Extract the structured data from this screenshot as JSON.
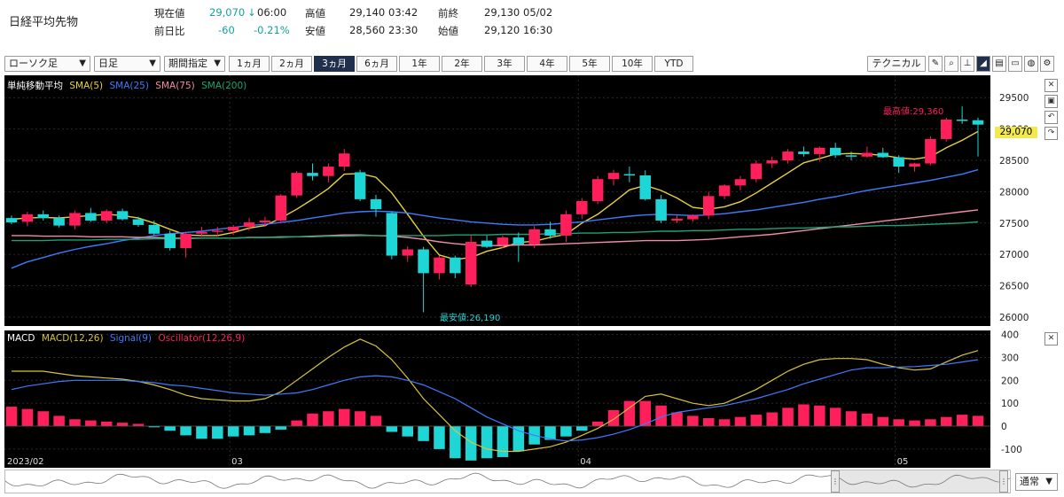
{
  "header": {
    "title": "日経平均先物",
    "current_label": "現在値",
    "current_value": "29,070",
    "current_arrow": "↓",
    "current_time": "06:00",
    "high_label": "高値",
    "high_value": "29,140",
    "high_time": "03:42",
    "prev_close_label": "前終",
    "prev_close_value": "29,130",
    "prev_close_date": "05/02",
    "change_label": "前日比",
    "change_value": "-60",
    "change_pct": "-0.21%",
    "low_label": "安値",
    "low_value": "28,560",
    "low_time": "23:30",
    "open_label": "始値",
    "open_value": "29,120",
    "open_time": "16:30"
  },
  "toolbar": {
    "chart_type": "ローソク足",
    "interval": "日足",
    "range_mode": "期間指定",
    "periods": [
      "1ヵ月",
      "2ヵ月",
      "3ヵ月",
      "6ヵ月",
      "1年",
      "2年",
      "3年",
      "4年",
      "5年",
      "10年",
      "YTD"
    ],
    "active_period": "3ヵ月",
    "technical_label": "テクニカル",
    "icons": [
      "pencil-icon",
      "zoom-icon",
      "bar-chart-icon",
      "line-chart-icon",
      "document-icon",
      "folder-icon",
      "globe-icon",
      "gear-icon"
    ],
    "display_mode": "通常"
  },
  "colors": {
    "background": "#000000",
    "up": "#ff1f5a",
    "down": "#1fd6d6",
    "sma5": "#e8d23c",
    "sma25": "#3e7bff",
    "sma75": "#f28ca8",
    "sma200": "#1aa37a",
    "macd": "#d8c43a",
    "signal": "#3e7bff",
    "osc_pos": "#ff1f5a",
    "osc_neg": "#1fd6d6"
  },
  "chart_data": [
    {
      "type": "candlestick",
      "legend": {
        "title": "単純移動平均",
        "items": [
          "SMA(5)",
          "SMA(25)",
          "SMA(75)",
          "SMA(200)"
        ]
      },
      "ylim": [
        25900,
        29800
      ],
      "yticks": [
        26000,
        26500,
        27000,
        27500,
        28000,
        28500,
        29000,
        29500
      ],
      "current_price": "29,070",
      "annotations": {
        "high": "最高値:29,360",
        "low": "最安値:26,190"
      },
      "xlabels": [
        {
          "i": 0,
          "label": "2023/02"
        },
        {
          "i": 14,
          "label": "03"
        },
        {
          "i": 36,
          "label": "04"
        },
        {
          "i": 56,
          "label": "05"
        }
      ],
      "candles": [
        [
          27580,
          27620,
          27480,
          27510
        ],
        [
          27520,
          27680,
          27450,
          27640
        ],
        [
          27640,
          27700,
          27540,
          27580
        ],
        [
          27580,
          27620,
          27430,
          27460
        ],
        [
          27460,
          27700,
          27400,
          27660
        ],
        [
          27660,
          27740,
          27520,
          27540
        ],
        [
          27540,
          27720,
          27500,
          27690
        ],
        [
          27690,
          27730,
          27540,
          27560
        ],
        [
          27560,
          27600,
          27440,
          27470
        ],
        [
          27470,
          27540,
          27300,
          27330
        ],
        [
          27330,
          27380,
          27060,
          27100
        ],
        [
          27100,
          27360,
          26950,
          27330
        ],
        [
          27330,
          27440,
          27280,
          27360
        ],
        [
          27360,
          27440,
          27300,
          27380
        ],
        [
          27380,
          27470,
          27310,
          27440
        ],
        [
          27440,
          27580,
          27380,
          27510
        ],
        [
          27510,
          27600,
          27440,
          27540
        ],
        [
          27540,
          27960,
          27500,
          27940
        ],
        [
          27940,
          28330,
          27900,
          28300
        ],
        [
          28300,
          28450,
          28180,
          28250
        ],
        [
          28250,
          28450,
          28150,
          28400
        ],
        [
          28400,
          28680,
          28330,
          28610
        ],
        [
          28310,
          28350,
          27850,
          27880
        ],
        [
          27880,
          27950,
          27600,
          27720
        ],
        [
          27660,
          27680,
          26920,
          26980
        ],
        [
          26980,
          27130,
          26880,
          27080
        ],
        [
          27080,
          27120,
          26190,
          26700
        ],
        [
          26700,
          26980,
          26600,
          26950
        ],
        [
          26950,
          26980,
          26620,
          26700
        ],
        [
          26520,
          27300,
          26480,
          27200
        ],
        [
          27220,
          27300,
          27100,
          27120
        ],
        [
          27150,
          27300,
          27100,
          27270
        ],
        [
          27270,
          27350,
          26880,
          27160
        ],
        [
          27160,
          27450,
          27100,
          27400
        ],
        [
          27400,
          27520,
          27250,
          27300
        ],
        [
          27300,
          27700,
          27200,
          27640
        ],
        [
          27640,
          27900,
          27560,
          27850
        ],
        [
          27850,
          28250,
          27800,
          28200
        ],
        [
          28200,
          28350,
          28100,
          28300
        ],
        [
          28280,
          28400,
          28150,
          28260
        ],
        [
          28260,
          28340,
          27860,
          27880
        ],
        [
          27880,
          27950,
          27500,
          27540
        ],
        [
          27540,
          27620,
          27500,
          27570
        ],
        [
          27560,
          27640,
          27520,
          27620
        ],
        [
          27620,
          28000,
          27560,
          27930
        ],
        [
          27930,
          28120,
          27880,
          28100
        ],
        [
          28100,
          28250,
          28020,
          28200
        ],
        [
          28200,
          28500,
          28150,
          28450
        ],
        [
          28450,
          28560,
          28380,
          28500
        ],
        [
          28500,
          28680,
          28450,
          28640
        ],
        [
          28640,
          28720,
          28560,
          28600
        ],
        [
          28600,
          28720,
          28480,
          28700
        ],
        [
          28700,
          28780,
          28540,
          28580
        ],
        [
          28580,
          28640,
          28500,
          28560
        ],
        [
          28560,
          28720,
          28540,
          28620
        ],
        [
          28620,
          28700,
          28540,
          28550
        ],
        [
          28550,
          28580,
          28300,
          28400
        ],
        [
          28400,
          28460,
          28320,
          28450
        ],
        [
          28450,
          28880,
          28420,
          28840
        ],
        [
          28840,
          29180,
          28800,
          29150
        ],
        [
          29150,
          29360,
          29080,
          29140
        ],
        [
          29140,
          29180,
          28560,
          29070
        ]
      ],
      "series": [
        {
          "name": "SMA(5)",
          "values": [
            27560,
            27580,
            27590,
            27580,
            27600,
            27620,
            27640,
            27620,
            27580,
            27500,
            27400,
            27310,
            27300,
            27300,
            27350,
            27420,
            27460,
            27580,
            27720,
            27880,
            28050,
            28280,
            28290,
            28230,
            27980,
            27640,
            27290,
            26990,
            26920,
            26950,
            27050,
            27110,
            27190,
            27210,
            27270,
            27320,
            27500,
            27640,
            27830,
            28030,
            28100,
            28020,
            27900,
            27750,
            27720,
            27760,
            27840,
            27980,
            28140,
            28300,
            28460,
            28530,
            28600,
            28610,
            28600,
            28580,
            28540,
            28520,
            28560,
            28700,
            28820,
            28960
          ]
        },
        {
          "name": "SMA(25)",
          "values": [
            26780,
            26880,
            26950,
            27020,
            27080,
            27130,
            27170,
            27220,
            27260,
            27300,
            27330,
            27350,
            27370,
            27400,
            27430,
            27460,
            27480,
            27510,
            27540,
            27580,
            27620,
            27660,
            27680,
            27690,
            27680,
            27660,
            27620,
            27580,
            27550,
            27520,
            27500,
            27480,
            27470,
            27470,
            27480,
            27500,
            27520,
            27550,
            27580,
            27610,
            27630,
            27640,
            27630,
            27620,
            27630,
            27650,
            27680,
            27710,
            27750,
            27790,
            27830,
            27880,
            27920,
            27970,
            28020,
            28060,
            28100,
            28140,
            28180,
            28230,
            28280,
            28350
          ]
        },
        {
          "name": "SMA(75)",
          "values": [
            27300,
            27300,
            27290,
            27290,
            27290,
            27280,
            27280,
            27280,
            27270,
            27270,
            27260,
            27260,
            27260,
            27260,
            27260,
            27270,
            27270,
            27280,
            27280,
            27290,
            27300,
            27310,
            27310,
            27300,
            27290,
            27270,
            27240,
            27200,
            27170,
            27150,
            27140,
            27140,
            27150,
            27150,
            27160,
            27170,
            27180,
            27190,
            27200,
            27210,
            27220,
            27220,
            27220,
            27230,
            27240,
            27260,
            27280,
            27300,
            27320,
            27350,
            27380,
            27410,
            27440,
            27470,
            27500,
            27530,
            27560,
            27590,
            27620,
            27650,
            27680,
            27710
          ]
        },
        {
          "name": "SMA(200)",
          "values": [
            27220,
            27220,
            27220,
            27230,
            27230,
            27230,
            27240,
            27240,
            27240,
            27250,
            27250,
            27250,
            27260,
            27260,
            27260,
            27270,
            27270,
            27270,
            27280,
            27280,
            27290,
            27290,
            27300,
            27300,
            27300,
            27300,
            27300,
            27300,
            27310,
            27310,
            27310,
            27320,
            27320,
            27320,
            27330,
            27330,
            27340,
            27340,
            27350,
            27350,
            27360,
            27370,
            27370,
            27380,
            27380,
            27390,
            27400,
            27400,
            27410,
            27420,
            27420,
            27430,
            27440,
            27440,
            27450,
            27460,
            27460,
            27470,
            27480,
            27490,
            27500,
            27520
          ]
        }
      ]
    },
    {
      "type": "line",
      "legend": {
        "title": "MACD",
        "items": [
          "MACD(12,26)",
          "Signal(9)",
          "Oscillator(12,26,9)"
        ]
      },
      "ylim": [
        -170,
        410
      ],
      "yticks": [
        -100,
        0,
        100,
        200,
        300,
        400
      ],
      "series": [
        {
          "name": "MACD(12,26)",
          "values": [
            240,
            240,
            240,
            230,
            220,
            215,
            210,
            205,
            195,
            180,
            160,
            135,
            120,
            115,
            110,
            110,
            120,
            150,
            200,
            250,
            300,
            345,
            380,
            350,
            290,
            210,
            120,
            50,
            -20,
            -70,
            -100,
            -110,
            -110,
            -100,
            -90,
            -70,
            -40,
            -10,
            30,
            80,
            130,
            140,
            120,
            100,
            90,
            100,
            130,
            160,
            200,
            240,
            270,
            290,
            295,
            295,
            290,
            270,
            255,
            245,
            250,
            280,
            310,
            330
          ]
        },
        {
          "name": "Signal(9)",
          "values": [
            160,
            175,
            185,
            195,
            200,
            200,
            200,
            200,
            195,
            190,
            180,
            175,
            165,
            155,
            145,
            140,
            135,
            140,
            145,
            160,
            180,
            200,
            215,
            220,
            215,
            200,
            180,
            150,
            120,
            80,
            40,
            10,
            -20,
            -40,
            -55,
            -65,
            -60,
            -50,
            -35,
            -15,
            10,
            40,
            60,
            70,
            80,
            90,
            105,
            120,
            140,
            160,
            185,
            205,
            225,
            245,
            255,
            255,
            258,
            260,
            265,
            270,
            280,
            290
          ]
        },
        {
          "name": "Oscillator(12,26,9)",
          "values": [
            85,
            75,
            65,
            45,
            30,
            25,
            20,
            15,
            10,
            -5,
            -20,
            -40,
            -55,
            -55,
            -45,
            -40,
            -30,
            -15,
            25,
            55,
            65,
            75,
            65,
            45,
            -25,
            -45,
            -65,
            -100,
            -140,
            -150,
            -140,
            -135,
            -110,
            -80,
            -60,
            -45,
            -20,
            20,
            70,
            110,
            110,
            90,
            60,
            45,
            35,
            30,
            40,
            50,
            60,
            80,
            95,
            90,
            80,
            65,
            55,
            40,
            30,
            25,
            30,
            40,
            50,
            45
          ]
        }
      ],
      "xlabels": [
        {
          "i": 0,
          "label": "2023/02"
        },
        {
          "i": 14,
          "label": "03"
        },
        {
          "i": 36,
          "label": "04"
        },
        {
          "i": 56,
          "label": "05"
        }
      ]
    }
  ]
}
